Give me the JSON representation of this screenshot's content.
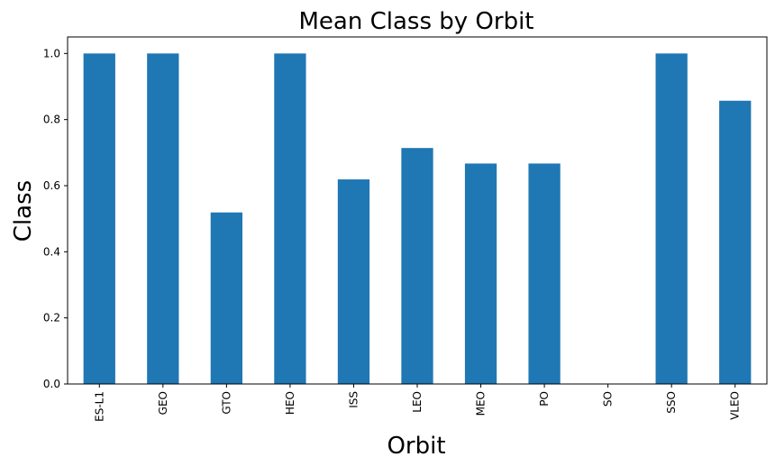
{
  "chart_data": {
    "type": "bar",
    "title": "Mean Class by Orbit",
    "xlabel": "Orbit",
    "ylabel": "Class",
    "categories": [
      "ES-L1",
      "GEO",
      "GTO",
      "HEO",
      "ISS",
      "LEO",
      "MEO",
      "PO",
      "SO",
      "SSO",
      "VLEO"
    ],
    "values": [
      1.0,
      1.0,
      0.519,
      1.0,
      0.619,
      0.714,
      0.667,
      0.667,
      0.0,
      1.0,
      0.857
    ],
    "ylim": [
      0,
      1.05
    ],
    "yticks": [
      "0.0",
      "0.2",
      "0.4",
      "0.6",
      "0.8",
      "1.0"
    ],
    "grid": false,
    "bar_color": "#1f77b4"
  }
}
